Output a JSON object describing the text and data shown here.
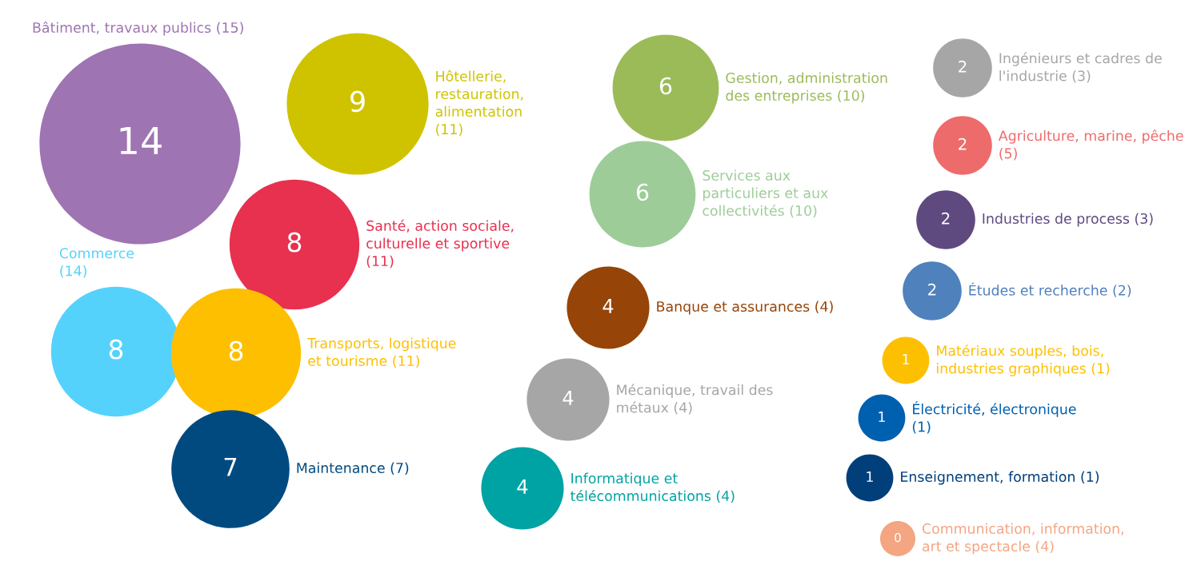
{
  "chart_data": {
    "type": "other",
    "categories": [
      "Bâtiment, travaux publics (15)",
      "Hôtellerie, restauration, alimentation (11)",
      "Santé, action sociale, culturelle et sportive (11)",
      "Commerce (14)",
      "Transports, logistique et tourisme (11)",
      "Maintenance (7)",
      "Gestion, administration des entreprises (10)",
      "Services aux particuliers et aux collectivités (10)",
      "Banque et assurances (4)",
      "Mécanique, travail des métaux (4)",
      "Informatique et télécommunications (4)",
      "Ingénieurs et cadres de l'industrie (3)",
      "Agriculture, marine, pêche (5)",
      "Industries de process (3)",
      "Études et recherche (2)",
      "Matériaux souples, bois, industries graphiques (1)",
      "Électricité, électronique (1)",
      "Enseignement, formation (1)",
      "Communication, information, art et spectacle (4)"
    ],
    "values": [
      14,
      9,
      8,
      8,
      8,
      7,
      6,
      6,
      4,
      4,
      4,
      2,
      2,
      2,
      2,
      1,
      1,
      1,
      0
    ],
    "colors": [
      "#9e74b2",
      "#cfc300",
      "#e8304f",
      "#54d2fc",
      "#fdbf00",
      "#004a80",
      "#9bbb59",
      "#9dcc99",
      "#964407",
      "#a6a6a6",
      "#00a3a3",
      "#a6a6a6",
      "#ee6b6b",
      "#5f4a80",
      "#4f81bd",
      "#fdc000",
      "#0060b0",
      "#003f7a",
      "#f4a582"
    ],
    "data_labels": true
  }
}
